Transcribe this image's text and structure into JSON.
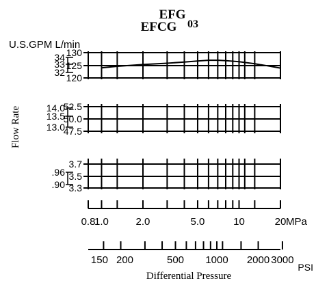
{
  "chart_data": {
    "type": "line",
    "title_line1": "EFG",
    "title_line2": "EFCG",
    "title_superscript": "03",
    "units_header": "U.S.GPM L/min",
    "ylabel": "Flow Rate",
    "xlabel": "Differential Pressure",
    "x_scale": "log",
    "x_range_mpa": [
      0.8,
      20
    ],
    "mpa_tick_labels": [
      "0.8",
      "1.0",
      "2.0",
      "5.0",
      "10",
      "20"
    ],
    "mpa_unit": "MPa",
    "psi_tick_labels": [
      "150",
      "200",
      "500",
      "1000",
      "2000",
      "3000"
    ],
    "psi_unit": "PSI",
    "grid": true,
    "panels": [
      {
        "lmin_range": [
          120,
          130
        ],
        "lmin_ticks": [
          "130",
          "125",
          "120"
        ],
        "gpm_ticks": [
          "34",
          "33",
          "32"
        ],
        "curve": {
          "x_mpa": [
            1.0,
            1.3,
            2.0,
            3.0,
            4.0,
            5.0,
            6.0,
            7.0,
            8.0,
            10,
            13,
            16,
            20
          ],
          "y_lmin": [
            124.0,
            124.6,
            125.3,
            125.8,
            126.3,
            126.7,
            127.0,
            127.0,
            126.8,
            126.4,
            125.6,
            124.8,
            123.9
          ]
        }
      },
      {
        "lmin_range": [
          47.5,
          52.5
        ],
        "lmin_ticks": [
          "52.5",
          "50.0",
          "47.5"
        ],
        "gpm_ticks": [
          "14.0",
          "13.5",
          "13.0"
        ]
      },
      {
        "lmin_range": [
          3.3,
          3.7
        ],
        "lmin_ticks": [
          "3.7",
          "3.5",
          "3.3"
        ],
        "gpm_ticks": [
          ".96",
          ".90"
        ]
      }
    ]
  }
}
